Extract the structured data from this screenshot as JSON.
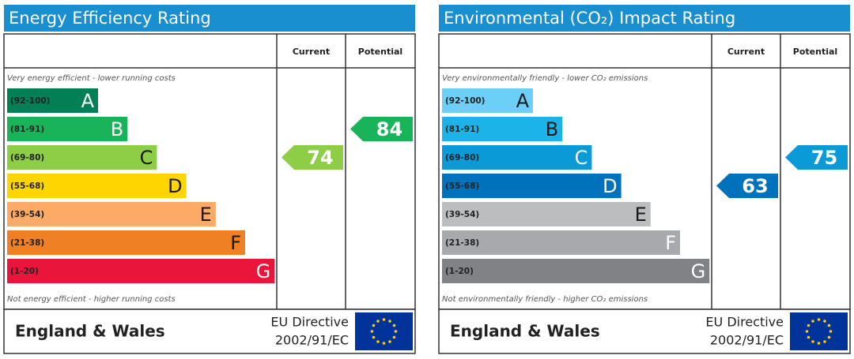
{
  "chart_data": [
    {
      "type": "epc",
      "title": "Energy Efficiency Rating",
      "column_headers": [
        "Current",
        "Potential"
      ],
      "top_note": "Very energy efficient - lower running costs",
      "bottom_note": "Not energy efficient - higher running costs",
      "bands": [
        {
          "range": "(92-100)",
          "letter": "A",
          "color": "#008054",
          "text_color": "#ffffff"
        },
        {
          "range": "(81-91)",
          "letter": "B",
          "color": "#19b459",
          "text_color": "#ffffff"
        },
        {
          "range": "(69-80)",
          "letter": "C",
          "color": "#8dce46",
          "text_color": "#1a1a1a"
        },
        {
          "range": "(55-68)",
          "letter": "D",
          "color": "#ffd500",
          "text_color": "#1a1a1a"
        },
        {
          "range": "(39-54)",
          "letter": "E",
          "color": "#fcaa65",
          "text_color": "#1a1a1a"
        },
        {
          "range": "(21-38)",
          "letter": "F",
          "color": "#ef8023",
          "text_color": "#1a1a1a"
        },
        {
          "range": "(1-20)",
          "letter": "G",
          "color": "#e9153b",
          "text_color": "#ffffff"
        }
      ],
      "current": 74,
      "potential": 84,
      "footer": {
        "region": "England & Wales",
        "directive": [
          "EU Directive",
          "2002/91/EC"
        ]
      }
    },
    {
      "type": "epc",
      "title": "Environmental (CO₂) Impact Rating",
      "column_headers": [
        "Current",
        "Potential"
      ],
      "top_note": "Very environmentally friendly - lower CO₂ emissions",
      "bottom_note": "Not environmentally friendly - higher CO₂ emissions",
      "bands": [
        {
          "range": "(92-100)",
          "letter": "A",
          "color": "#6ccff6",
          "text_color": "#1a1a1a"
        },
        {
          "range": "(81-91)",
          "letter": "B",
          "color": "#1cb4e8",
          "text_color": "#1a1a1a"
        },
        {
          "range": "(69-80)",
          "letter": "C",
          "color": "#0a9ad8",
          "text_color": "#ffffff"
        },
        {
          "range": "(55-68)",
          "letter": "D",
          "color": "#0071bb",
          "text_color": "#ffffff"
        },
        {
          "range": "(39-54)",
          "letter": "E",
          "color": "#bbbdbf",
          "text_color": "#1a1a1a"
        },
        {
          "range": "(21-38)",
          "letter": "F",
          "color": "#a7a9ac",
          "text_color": "#ffffff"
        },
        {
          "range": "(1-20)",
          "letter": "G",
          "color": "#808285",
          "text_color": "#ffffff"
        }
      ],
      "current": 63,
      "potential": 75,
      "footer": {
        "region": "England & Wales",
        "directive": [
          "EU Directive",
          "2002/91/EC"
        ]
      }
    }
  ]
}
